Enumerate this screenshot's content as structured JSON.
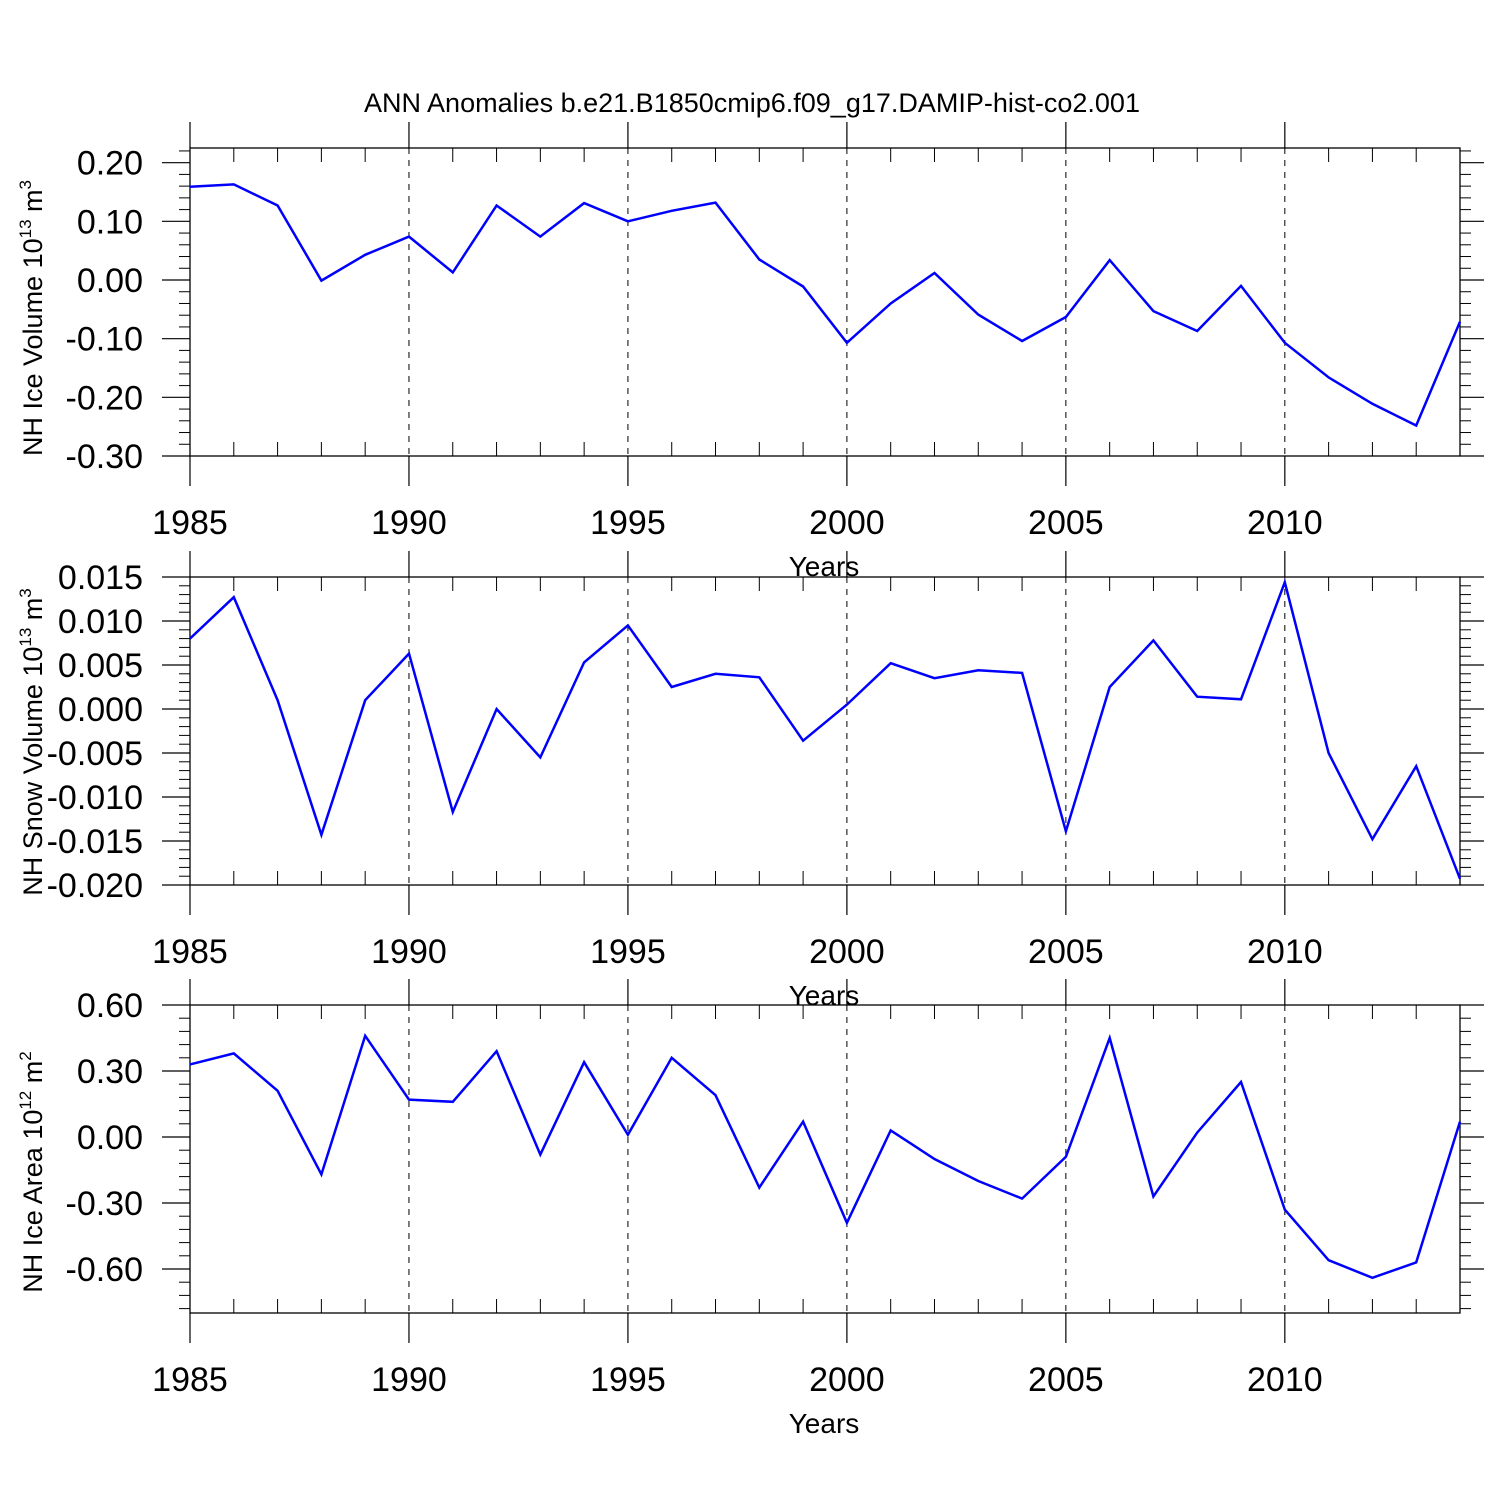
{
  "title": "ANN Anomalies b.e21.B1850cmip6.f09_g17.DAMIP-hist-co2.001",
  "chart_data": [
    {
      "type": "line",
      "ylabel": {
        "base": "NH Ice Volume 10",
        "exp": "13",
        "unit": " m",
        "unit_exp": "3"
      },
      "xlabel": "Years",
      "xlim": [
        1985,
        2014
      ],
      "ylim": [
        -0.3,
        0.225
      ],
      "xticks": [
        1985,
        1990,
        1995,
        2000,
        2005,
        2010
      ],
      "yticks": [
        -0.3,
        -0.2,
        -0.1,
        0.0,
        0.1,
        0.2
      ],
      "ytick_labels": [
        "-0.30",
        "-0.20",
        "-0.10",
        "0.00",
        "0.10",
        "0.20"
      ],
      "line_color": "#0000ff",
      "grid": "dashed vertical at major x ticks",
      "series": [
        {
          "name": "NH Ice Volume",
          "x": [
            1985,
            1986,
            1987,
            1988,
            1989,
            1990,
            1991,
            1992,
            1993,
            1994,
            1995,
            1996,
            1997,
            1998,
            1999,
            2000,
            2001,
            2002,
            2003,
            2004,
            2005,
            2006,
            2007,
            2008,
            2009,
            2010,
            2011,
            2012,
            2013,
            2014
          ],
          "values": [
            0.159,
            0.163,
            0.127,
            -0.001,
            0.043,
            0.074,
            0.013,
            0.127,
            0.074,
            0.131,
            0.1,
            0.118,
            0.132,
            0.035,
            -0.011,
            -0.107,
            -0.04,
            0.012,
            -0.059,
            -0.104,
            -0.063,
            0.034,
            -0.053,
            -0.087,
            -0.01,
            -0.107,
            -0.166,
            -0.211,
            -0.248,
            -0.071
          ]
        }
      ]
    },
    {
      "type": "line",
      "ylabel": {
        "base": "NH Snow Volume 10",
        "exp": "13",
        "unit": " m",
        "unit_exp": "3"
      },
      "xlabel": "Years",
      "xlim": [
        1985,
        2014
      ],
      "ylim": [
        -0.02,
        0.015
      ],
      "xticks": [
        1985,
        1990,
        1995,
        2000,
        2005,
        2010
      ],
      "yticks": [
        -0.02,
        -0.015,
        -0.01,
        -0.005,
        0.0,
        0.005,
        0.01,
        0.015
      ],
      "ytick_labels": [
        "-0.020",
        "-0.015",
        "-0.010",
        "-0.005",
        "0.000",
        "0.005",
        "0.010",
        "0.015"
      ],
      "line_color": "#0000ff",
      "grid": "dashed vertical at major x ticks",
      "series": [
        {
          "name": "NH Snow Volume",
          "x": [
            1985,
            1986,
            1987,
            1988,
            1989,
            1990,
            1991,
            1992,
            1993,
            1994,
            1995,
            1996,
            1997,
            1998,
            1999,
            2000,
            2001,
            2002,
            2003,
            2004,
            2005,
            2006,
            2007,
            2008,
            2009,
            2010,
            2011,
            2012,
            2013,
            2014
          ],
          "values": [
            0.008,
            0.0127,
            0.001,
            -0.0143,
            0.001,
            0.0063,
            -0.0117,
            0.0,
            -0.0055,
            0.0053,
            0.0095,
            0.0025,
            0.004,
            0.0036,
            -0.0036,
            0.0005,
            0.0052,
            0.0035,
            0.0044,
            0.0041,
            -0.0139,
            0.0025,
            0.0078,
            0.0014,
            0.0011,
            0.0144,
            -0.005,
            -0.0148,
            -0.0065,
            -0.0193
          ]
        }
      ]
    },
    {
      "type": "line",
      "ylabel": {
        "base": "NH Ice Area 10",
        "exp": "12",
        "unit": " m",
        "unit_exp": "2"
      },
      "xlabel": "Years",
      "xlim": [
        1985,
        2014
      ],
      "ylim": [
        -0.8,
        0.6
      ],
      "xticks": [
        1985,
        1990,
        1995,
        2000,
        2005,
        2010
      ],
      "yticks": [
        -0.6,
        -0.3,
        0.0,
        0.3,
        0.6
      ],
      "ytick_labels": [
        "-0.60",
        "-0.30",
        "0.00",
        "0.30",
        "0.60"
      ],
      "line_color": "#0000ff",
      "grid": "dashed vertical at major x ticks",
      "series": [
        {
          "name": "NH Ice Area",
          "x": [
            1985,
            1986,
            1987,
            1988,
            1989,
            1990,
            1991,
            1992,
            1993,
            1994,
            1995,
            1996,
            1997,
            1998,
            1999,
            2000,
            2001,
            2002,
            2003,
            2004,
            2005,
            2006,
            2007,
            2008,
            2009,
            2010,
            2011,
            2012,
            2013,
            2014
          ],
          "values": [
            0.33,
            0.38,
            0.21,
            -0.17,
            0.46,
            0.17,
            0.16,
            0.39,
            -0.08,
            0.34,
            0.01,
            0.36,
            0.19,
            -0.23,
            0.07,
            -0.39,
            0.03,
            -0.1,
            -0.2,
            -0.28,
            -0.09,
            0.45,
            -0.27,
            0.02,
            0.25,
            -0.33,
            -0.56,
            -0.64,
            -0.57,
            0.07
          ]
        }
      ]
    }
  ]
}
